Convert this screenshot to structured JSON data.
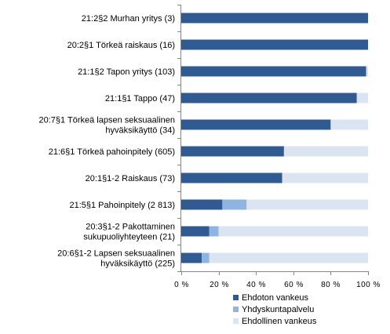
{
  "chart_data": {
    "type": "bar",
    "orientation": "horizontal",
    "stacked": true,
    "normalized": true,
    "categories": [
      [
        "21:2§2 Murhan yritys (3)"
      ],
      [
        "20:2§1 Törkeä raiskaus (16)"
      ],
      [
        "21:1§2 Tapon yritys (103)"
      ],
      [
        "21:1§1 Tappo (47)"
      ],
      [
        "20:7§1 Törkeä lapsen seksuaalinen",
        "hyväksikäyttö (34)"
      ],
      [
        "21:6§1 Törkeä pahoinpitely (605)"
      ],
      [
        "20:1§1-2 Raiskaus (73)"
      ],
      [
        "21:5§1 Pahoinpitely (2 813)"
      ],
      [
        "20:3§1-2 Pakottaminen",
        "sukupuoliyhteyteen (21)"
      ],
      [
        "20:6§1-2 Lapsen seksuaalinen",
        "hyväksikäyttö (225)"
      ]
    ],
    "series": [
      {
        "name": "Ehdoton vankeus",
        "color": "#2f5a92",
        "values": [
          100,
          100,
          99,
          94,
          80,
          55,
          54,
          22,
          15,
          11
        ]
      },
      {
        "name": "Yhdyskuntapalvelu",
        "color": "#8db4e3",
        "values": [
          0,
          0,
          0,
          0,
          0,
          0,
          0,
          13,
          5,
          4
        ]
      },
      {
        "name": "Ehdollinen vankeus",
        "color": "#dbe5f1",
        "values": [
          0,
          0,
          1,
          6,
          20,
          45,
          46,
          65,
          80,
          85
        ]
      }
    ],
    "x_ticks": [
      "0 %",
      "20 %",
      "40 %",
      "60 %",
      "80 %",
      "100 %"
    ],
    "xlim": [
      0,
      100
    ],
    "grid": false,
    "legend_position": "bottom-right"
  }
}
